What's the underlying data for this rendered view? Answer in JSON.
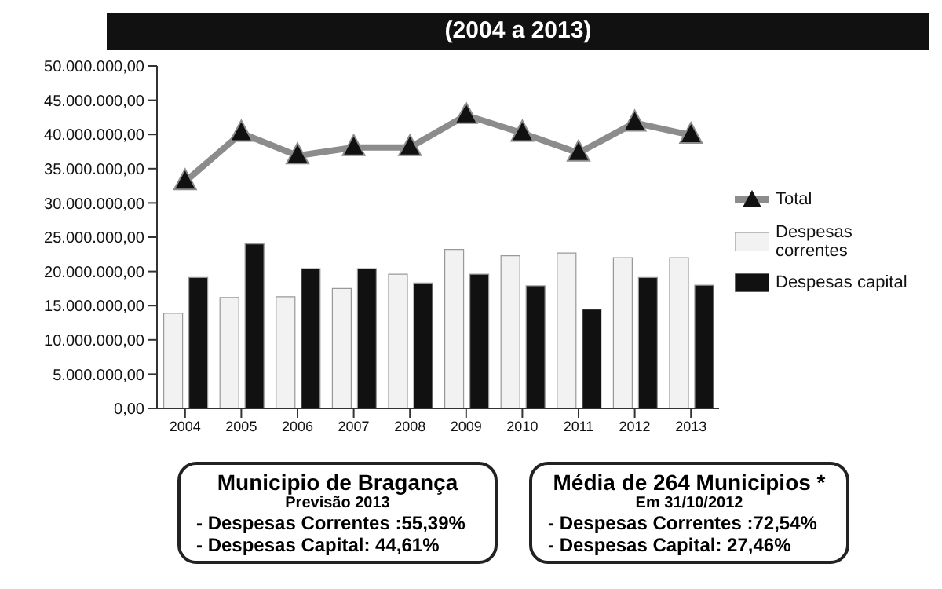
{
  "chart_data": {
    "type": "bar",
    "title": "(2004 a 2013)",
    "categories": [
      "2004",
      "2005",
      "2006",
      "2007",
      "2008",
      "2009",
      "2010",
      "2011",
      "2012",
      "2013"
    ],
    "series": [
      {
        "name": "Total",
        "type": "line",
        "color": "#8c8c8c",
        "marker": "triangle",
        "values": [
          33100000,
          40200000,
          36900000,
          38100000,
          38100000,
          42800000,
          40200000,
          37300000,
          41700000,
          39900000
        ]
      },
      {
        "name": "Despesas correntes",
        "color": "#f2f2f2",
        "values": [
          13900000,
          16200000,
          16300000,
          17500000,
          19600000,
          23200000,
          22300000,
          22700000,
          22000000,
          22000000
        ]
      },
      {
        "name": "Despesas capital",
        "color": "#111111",
        "values": [
          19100000,
          24000000,
          20400000,
          20400000,
          18300000,
          19600000,
          17900000,
          14500000,
          19100000,
          18000000
        ]
      }
    ],
    "ylim": [
      0,
      50000000
    ],
    "yticks": [
      {
        "value": 0,
        "label": "0,00"
      },
      {
        "value": 5000000,
        "label": "5.000.000,00"
      },
      {
        "value": 10000000,
        "label": "10.000.000,00"
      },
      {
        "value": 15000000,
        "label": "15.000.000,00"
      },
      {
        "value": 20000000,
        "label": "20.000.000,00"
      },
      {
        "value": 25000000,
        "label": "25.000.000,00"
      },
      {
        "value": 30000000,
        "label": "30.000.000,00"
      },
      {
        "value": 35000000,
        "label": "35.000.000,00"
      },
      {
        "value": 40000000,
        "label": "40.000.000,00"
      },
      {
        "value": 45000000,
        "label": "45.000.000,00"
      },
      {
        "value": 50000000,
        "label": "50.000.000,00"
      }
    ],
    "grid": false,
    "legend": "right",
    "annotations": [
      "Municipio de Bragança",
      "Previsão 2013",
      "- Despesas Correntes :55,39%",
      "- Despesas Capital: 44,61%",
      "Média de 264 Municipios *",
      "Em 31/10/2012",
      "- Despesas Correntes :72,54%",
      "- Despesas Capital: 27,46%"
    ]
  }
}
